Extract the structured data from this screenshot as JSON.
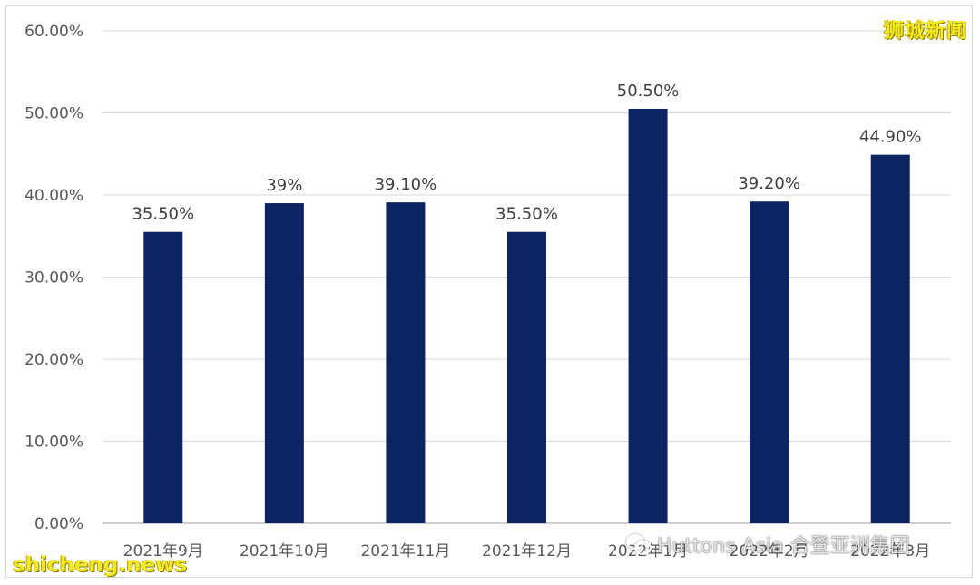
{
  "watermarks": {
    "top_right": "狮城新闻",
    "bottom_left": "shicheng.news",
    "bottom_right": "Huttons Asia 合登亚洲集团",
    "bottom_right_icon": "wechat-icon"
  },
  "colors": {
    "bar": "#0c2461",
    "grid": "#d9d9d9",
    "axis": "#bfbfbf",
    "watermark": "#f2ea1f"
  },
  "chart_data": {
    "type": "bar",
    "title": "",
    "xlabel": "",
    "ylabel": "",
    "categories": [
      "2021年9月",
      "2021年10月",
      "2021年11月",
      "2021年12月",
      "2022年1月",
      "2022年2月",
      "2022年3月"
    ],
    "values": [
      35.5,
      39.0,
      39.1,
      35.5,
      50.5,
      39.2,
      44.9
    ],
    "data_labels": [
      "35.50%",
      "39%",
      "39.10%",
      "35.50%",
      "50.50%",
      "39.20%",
      "44.90%"
    ],
    "ylim": [
      0,
      60
    ],
    "yticks": [
      0,
      10,
      20,
      30,
      40,
      50,
      60
    ],
    "ytick_labels": [
      "0.00%",
      "10.00%",
      "20.00%",
      "30.00%",
      "40.00%",
      "50.00%",
      "60.00%"
    ],
    "grid": true,
    "legend": "none"
  }
}
